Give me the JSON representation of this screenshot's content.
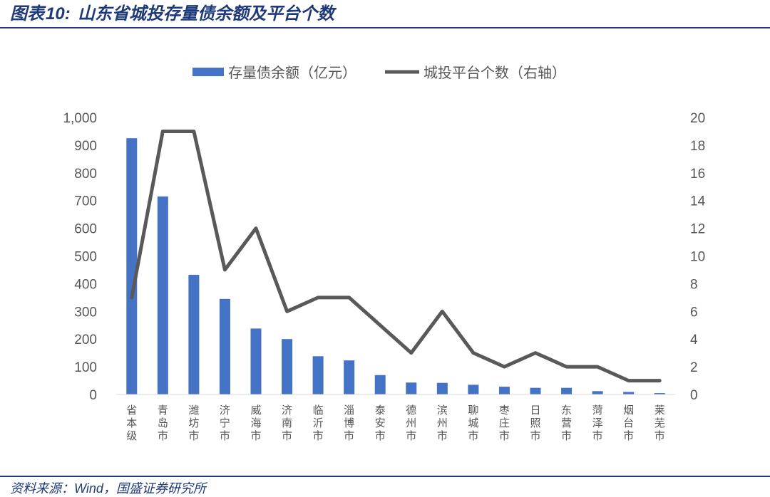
{
  "header": {
    "prefix": "图表",
    "number": "10:",
    "title": "山东省城投存量债余额及平台个数"
  },
  "footer": {
    "source_label": "资料来源：",
    "source_org": "Wind",
    "source_rest": "，国盛证券研究所"
  },
  "colors": {
    "bar": "#4472c4",
    "line": "#595959",
    "brand": "#1f3a78"
  },
  "chart_data": {
    "type": "bar+line",
    "categories": [
      "省本级",
      "青岛市",
      "潍坊市",
      "济宁市",
      "威海市",
      "济南市",
      "临沂市",
      "淄博市",
      "泰安市",
      "德州市",
      "滨州市",
      "聊城市",
      "枣庄市",
      "日照市",
      "东营市",
      "菏泽市",
      "烟台市",
      "莱芜市"
    ],
    "series": [
      {
        "name": "存量债余额（亿元）",
        "type": "bar",
        "axis": "left",
        "values": [
          925,
          715,
          432,
          345,
          238,
          200,
          138,
          123,
          70,
          43,
          42,
          35,
          28,
          24,
          24,
          12,
          9,
          5
        ]
      },
      {
        "name": "城投平台个数（右轴）",
        "type": "line",
        "axis": "right",
        "values": [
          7,
          19,
          19,
          9,
          12,
          6,
          7,
          7,
          5,
          3,
          6,
          3,
          2,
          3,
          2,
          2,
          1,
          1
        ]
      }
    ],
    "y_left": {
      "min": 0,
      "max": 1000,
      "ticks": [
        "0",
        "100",
        "200",
        "300",
        "400",
        "500",
        "600",
        "700",
        "800",
        "900",
        "1,000"
      ]
    },
    "y_right": {
      "min": 0,
      "max": 20,
      "ticks": [
        "0",
        "2",
        "4",
        "6",
        "8",
        "10",
        "12",
        "14",
        "16",
        "18",
        "20"
      ]
    },
    "legend_position": "top",
    "grid": false
  }
}
